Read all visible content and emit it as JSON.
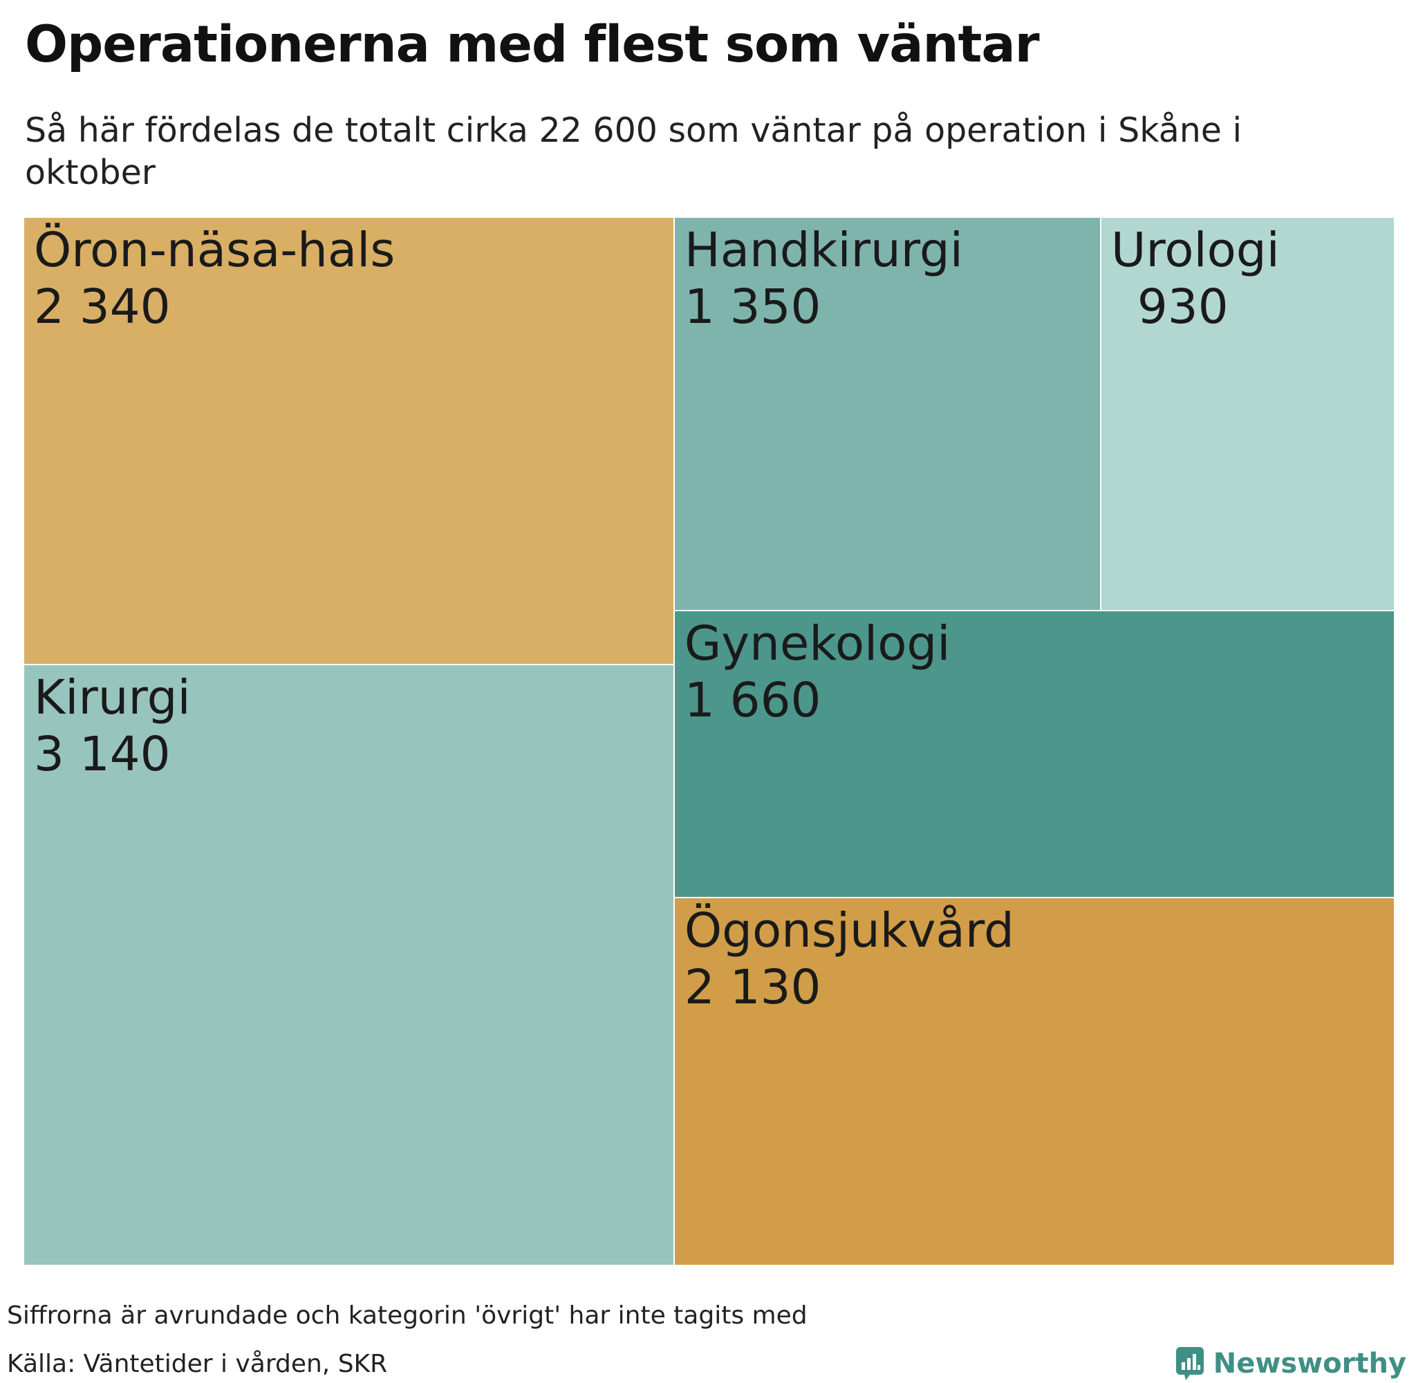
{
  "header": {
    "title": "Operationerna med flest som väntar",
    "subtitle": "Så här fördelas de totalt cirka 22 600 som väntar på operation i Skåne i oktober"
  },
  "footer": {
    "note": "Siffrorna är avrundade och kategorin 'övrigt' har inte tagits med",
    "source": "Källa: Väntetider i vården, SKR",
    "brand": "Newsworthy",
    "brand_icon": "newsworthy-logo-icon"
  },
  "chart_data": {
    "type": "treemap",
    "title": "Operationerna med flest som väntar",
    "subtitle": "Så här fördelas de totalt cirka 22 600 som väntar på operation i Skåne i oktober",
    "unit": "",
    "items": [
      {
        "name": "Kirurgi",
        "value": 3140,
        "value_label": "3 140",
        "color": "#98c4be"
      },
      {
        "name": "Öron-näsa-hals",
        "value": 2340,
        "value_label": "2 340",
        "color": "#d8af64"
      },
      {
        "name": "Ögonsjukvård",
        "value": 2130,
        "value_label": "2 130",
        "color": "#d19d48"
      },
      {
        "name": "Gynekologi",
        "value": 1660,
        "value_label": "1 660",
        "color": "#4c968b"
      },
      {
        "name": "Handkirurgi",
        "value": 1350,
        "value_label": "1 350",
        "color": "#7fb4ad"
      },
      {
        "name": "Urologi",
        "value": 930,
        "value_label": "930",
        "color": "#b2d7d0"
      }
    ]
  }
}
